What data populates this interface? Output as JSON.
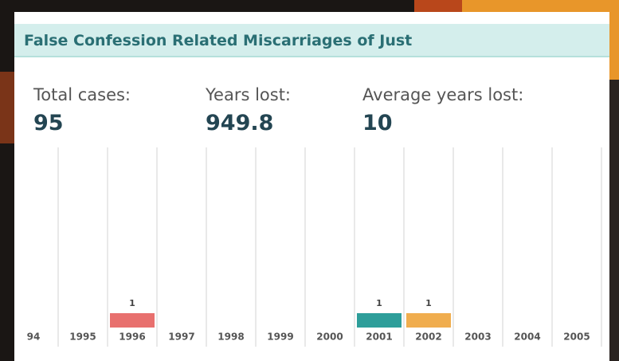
{
  "header": {
    "title": "False Confession Related Miscarriages of Just",
    "stats": [
      {
        "label": "Total cases:",
        "value": 95
      },
      {
        "label": "Years lost:",
        "value": 949.8
      },
      {
        "label": "Average years lost:",
        "value": 10
      }
    ]
  },
  "chart_data": {
    "type": "bar",
    "categories": [
      "94",
      "1995",
      "1996",
      "1997",
      "1998",
      "1999",
      "2000",
      "2001",
      "2002",
      "2003",
      "2004",
      "2005"
    ],
    "values": [
      0,
      0,
      1,
      0,
      0,
      0,
      0,
      1,
      1,
      0,
      0,
      0
    ],
    "colors": [
      "#cccccc",
      "#cccccc",
      "#e8706e",
      "#cccccc",
      "#cccccc",
      "#cccccc",
      "#cccccc",
      "#2e9e9a",
      "#f0ad4e",
      "#cccccc",
      "#cccccc",
      "#cccccc"
    ]
  }
}
